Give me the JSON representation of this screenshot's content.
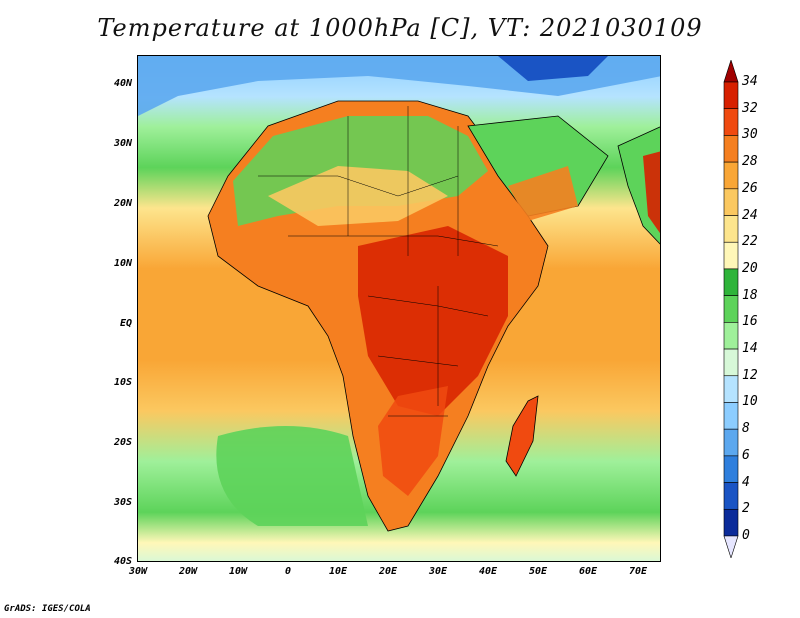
{
  "title": "Temperature at 1000hPa [C], VT: 2021030109",
  "credit": "GrADS: IGES/COLA",
  "lat_labels": [
    "40N",
    "30N",
    "20N",
    "10N",
    "EQ",
    "10S",
    "20S",
    "30S",
    "40S"
  ],
  "lon_labels": [
    "30W",
    "20W",
    "10W",
    "0",
    "10E",
    "20E",
    "30E",
    "40E",
    "50E",
    "60E",
    "70E"
  ],
  "colorbar": {
    "labels": [
      "34",
      "32",
      "30",
      "28",
      "26",
      "24",
      "22",
      "20",
      "18",
      "16",
      "14",
      "12",
      "10",
      "8",
      "6",
      "4",
      "2",
      "0"
    ],
    "colors": [
      "#a00000",
      "#d72000",
      "#f04a10",
      "#f57f20",
      "#f9a636",
      "#fbc860",
      "#fde58d",
      "#fff7b8",
      "#2fb43a",
      "#5dd35a",
      "#9ff09a",
      "#d7f8d8",
      "#b5e3ff",
      "#8ccdff",
      "#5ca8ef",
      "#2f7fdd",
      "#1a54c4",
      "#0b2b9a",
      "#08156c"
    ]
  }
}
